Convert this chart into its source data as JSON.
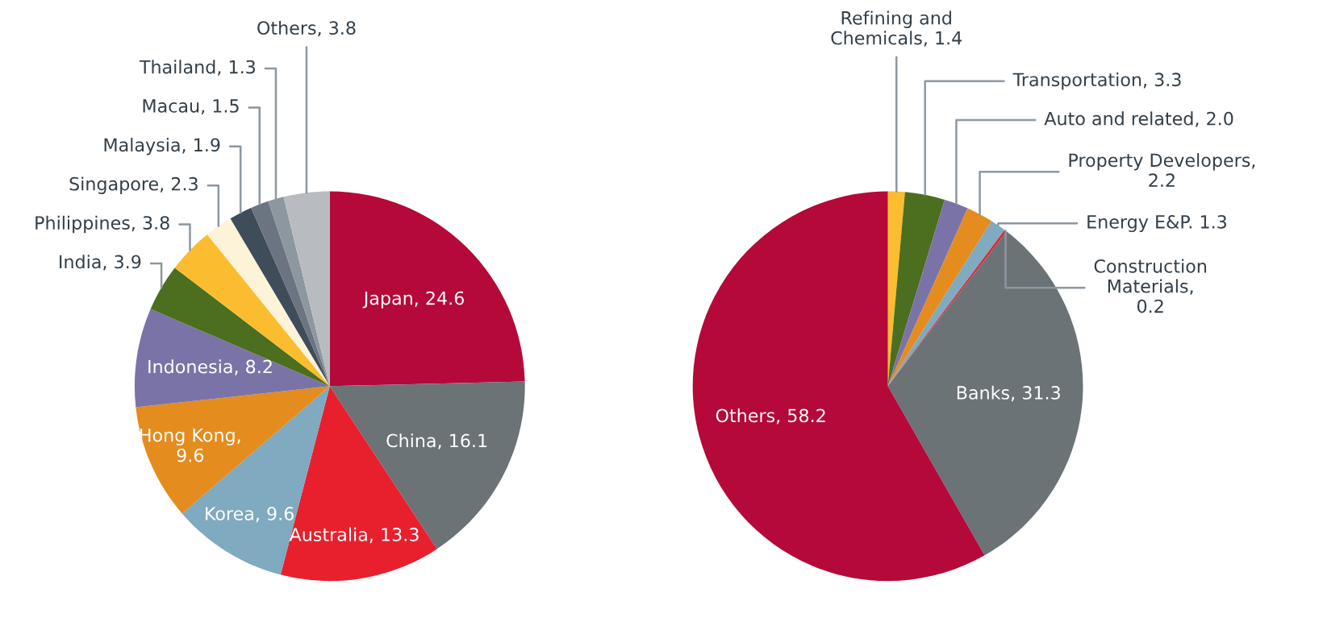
{
  "chart_data": [
    {
      "type": "pie",
      "categories": [
        "Japan, 24.6",
        "China, 16.1",
        "Australia, 13.3",
        "Korea, 9.6",
        "Hong Kong,\n9.6",
        "Indonesia, 8.2",
        "India, 3.9",
        "Philippines, 3.8",
        "Singapore, 2.3",
        "Malaysia, 1.9",
        "Macau, 1.5",
        "Thailand, 1.3",
        "Others, 3.8"
      ],
      "values": [
        24.6,
        16.1,
        13.3,
        9.6,
        9.6,
        8.2,
        3.9,
        3.8,
        2.3,
        1.9,
        1.5,
        1.3,
        3.8
      ],
      "colors": [
        "#b5093a",
        "#6b7377",
        "#e8202e",
        "#7faabf",
        "#e48c1e",
        "#7a73a8",
        "#4c6e1f",
        "#fbbd2f",
        "#fdf3d8",
        "#3f4c5a",
        "#6b7480",
        "#8d979f",
        "#b8bcc0"
      ]
    },
    {
      "type": "pie",
      "categories": [
        "Refining and\nChemicals, 1.4",
        "Transportation, 3.3",
        "Auto and related, 2.0",
        "Property Developers,\n2.2",
        "Energy E&P. 1.3",
        "Construction\nMaterials,\n0.2",
        "Banks, 31.3",
        "Others, 58.2"
      ],
      "values": [
        1.4,
        3.3,
        2.0,
        2.2,
        1.3,
        0.2,
        31.3,
        58.2
      ],
      "colors": [
        "#fbbd2f",
        "#4c6e1f",
        "#7a73a8",
        "#e48c1e",
        "#7faabf",
        "#e8202e",
        "#6b7377",
        "#b5093a"
      ]
    }
  ]
}
